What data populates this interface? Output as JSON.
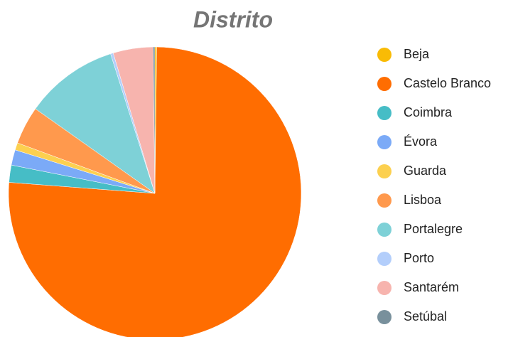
{
  "chart_data": {
    "type": "pie",
    "title": "Distrito",
    "categories": [
      "Beja",
      "Castelo Branco",
      "Coimbra",
      "Évora",
      "Guarda",
      "Lisboa",
      "Portalegre",
      "Porto",
      "Santarém",
      "Setúbal"
    ],
    "values": [
      0.2,
      76,
      1.9,
      1.7,
      0.8,
      4.2,
      10.3,
      0.3,
      4.4,
      0.2
    ],
    "colors": [
      "#f9bb05",
      "#ff6d01",
      "#46bdc6",
      "#7baaf7",
      "#fcd04f",
      "#ff994d",
      "#7ed1d7",
      "#b3cefb",
      "#f7b4ae",
      "#78909c"
    ],
    "legend": "right"
  }
}
